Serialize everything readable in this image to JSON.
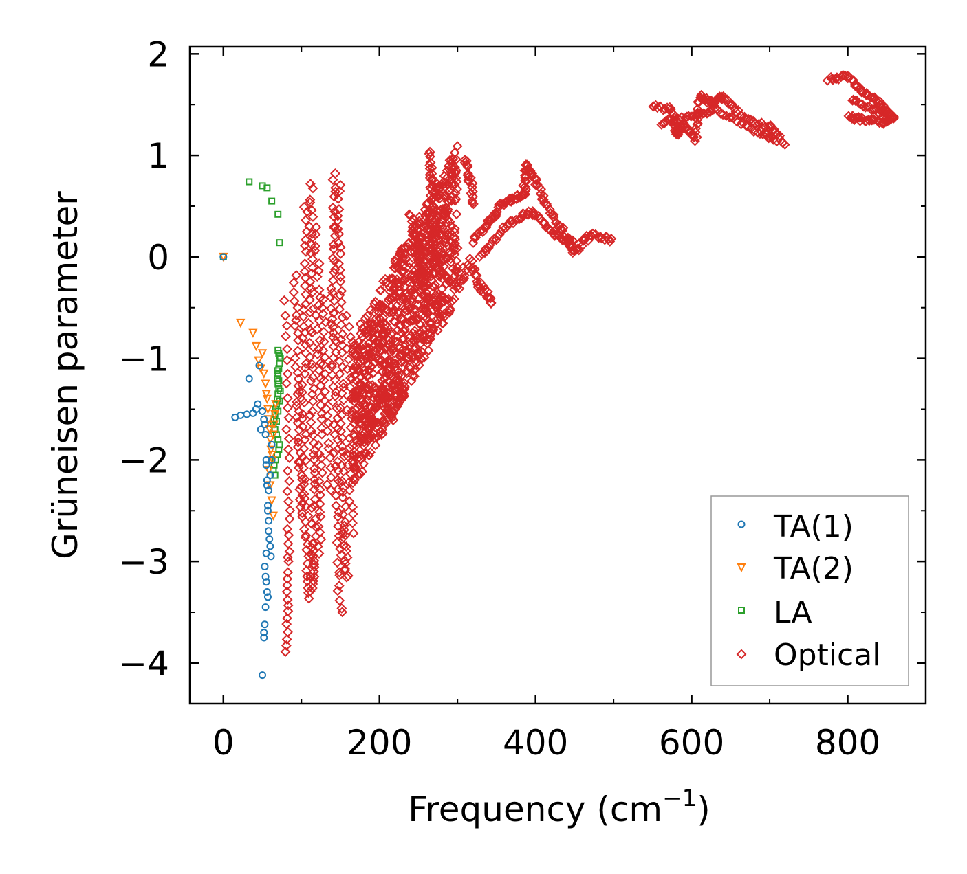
{
  "chart_data": {
    "type": "scatter",
    "title": "",
    "xlabel": "Frequency (cm",
    "xlabel_sup": "−1",
    "xlabel_end": ")",
    "ylabel": "Grüneisen parameter",
    "xlim": [
      -43,
      900
    ],
    "ylim": [
      -4.4,
      2.07
    ],
    "xticks": [
      0,
      200,
      400,
      600,
      800
    ],
    "yticks": [
      2,
      1,
      0,
      -1,
      -2,
      -3,
      -4
    ],
    "xtick_labels": [
      "0",
      "200",
      "400",
      "600",
      "800"
    ],
    "ytick_labels": [
      "2",
      "1",
      "0",
      "−1",
      "−2",
      "−3",
      "−4"
    ],
    "legend_position": "lower-right",
    "series": [
      {
        "name": "TA(1)",
        "marker": "circle",
        "color": "#1f77b4",
        "x": [
          0,
          15,
          22,
          30,
          33,
          38,
          42,
          44,
          46,
          48,
          50,
          52,
          53,
          54,
          55,
          55,
          56,
          56,
          57,
          57,
          58,
          58,
          59,
          60,
          61,
          62,
          53,
          54,
          55,
          56,
          57,
          54,
          53,
          52,
          52,
          55,
          58,
          60,
          62,
          50
        ],
        "y": [
          0,
          -1.58,
          -1.56,
          -1.55,
          -1.2,
          -1.54,
          -1.5,
          -1.45,
          -1.07,
          -1.7,
          -1.52,
          -1.6,
          -1.65,
          -1.75,
          -2.0,
          -2.05,
          -2.2,
          -2.25,
          -2.45,
          -2.5,
          -2.6,
          -2.7,
          -2.78,
          -2.85,
          -2.95,
          -1.85,
          -3.05,
          -3.15,
          -3.2,
          -3.3,
          -3.35,
          -3.45,
          -3.62,
          -3.7,
          -3.75,
          -2.92,
          -2.3,
          -2.15,
          -2.0,
          -4.12
        ]
      },
      {
        "name": "TA(2)",
        "marker": "triangle",
        "color": "#ff7f0e",
        "x": [
          0,
          22,
          38,
          42,
          45,
          48,
          50,
          52,
          54,
          55,
          56,
          57,
          58,
          59,
          60,
          61,
          62,
          63,
          64,
          65,
          66,
          67,
          58,
          60,
          62,
          64
        ],
        "y": [
          0,
          -0.65,
          -0.75,
          -0.88,
          -1.02,
          -1.1,
          -0.95,
          -1.15,
          -1.25,
          -1.35,
          -1.4,
          -1.5,
          -1.6,
          -1.7,
          -1.8,
          -1.9,
          -1.95,
          -2.0,
          -1.75,
          -1.65,
          -1.55,
          -1.45,
          -2.1,
          -2.25,
          -2.4,
          -2.55
        ]
      },
      {
        "name": "LA",
        "marker": "square",
        "color": "#2ca02c",
        "x": [
          0,
          33,
          50,
          56,
          62,
          70,
          72,
          70,
          71,
          72,
          73,
          72,
          71,
          70,
          69,
          70,
          71,
          70,
          69,
          68,
          67,
          66,
          65,
          64,
          66,
          68,
          70,
          72,
          71,
          69,
          67,
          65,
          64,
          66,
          68,
          70,
          72,
          73,
          71,
          69
        ],
        "y": [
          0,
          0.74,
          0.7,
          0.68,
          0.55,
          0.42,
          0.14,
          -0.92,
          -0.95,
          -0.98,
          -1.0,
          -1.05,
          -1.1,
          -1.15,
          -1.2,
          -1.25,
          -1.3,
          -1.35,
          -1.4,
          -1.45,
          -1.5,
          -1.55,
          -1.6,
          -1.65,
          -1.7,
          -1.75,
          -1.8,
          -1.85,
          -1.9,
          -1.95,
          -2.0,
          -2.05,
          -2.1,
          -2.15,
          -1.62,
          -1.52,
          -1.42,
          -1.32,
          -1.22,
          -1.12
        ]
      },
      {
        "name": "Optical",
        "marker": "diamond",
        "color": "#d62728",
        "x": [],
        "y": []
      }
    ]
  }
}
